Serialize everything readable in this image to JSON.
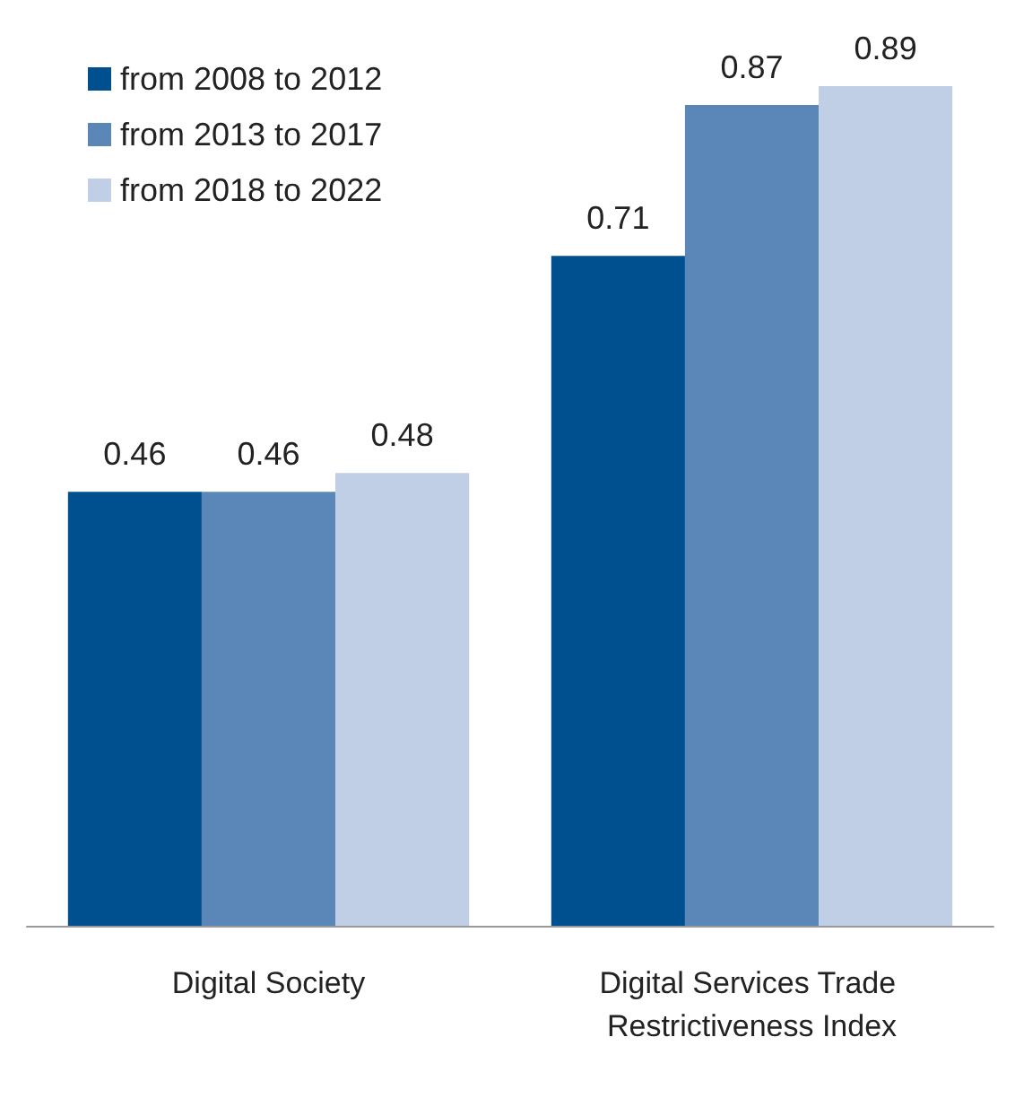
{
  "chart_data": {
    "type": "bar",
    "categories": [
      "Digital Society",
      "Digital Services Trade Restrictiveness Index"
    ],
    "series": [
      {
        "name": "from 2008 to 2012",
        "color": "#00508f",
        "values": [
          0.46,
          0.71
        ]
      },
      {
        "name": "from 2013 to 2017",
        "color": "#5b86b8",
        "values": [
          0.46,
          0.87
        ]
      },
      {
        "name": "from 2018 to 2022",
        "color": "#c0cfe6",
        "values": [
          0.48,
          0.89
        ]
      }
    ],
    "data_labels": true,
    "legend": "top left"
  }
}
